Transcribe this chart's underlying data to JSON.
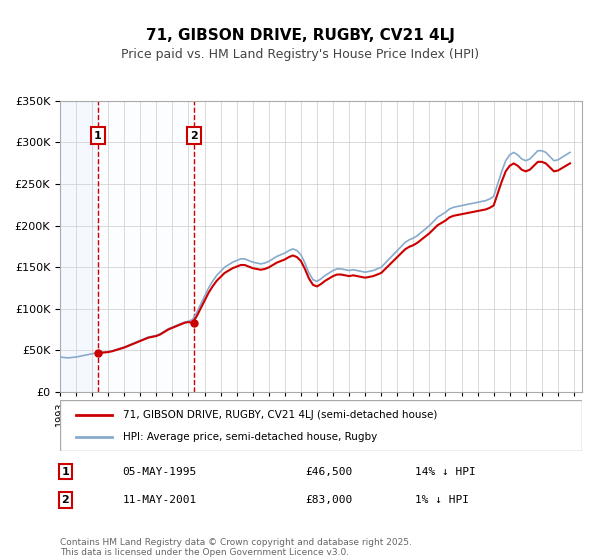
{
  "title": "71, GIBSON DRIVE, RUGBY, CV21 4LJ",
  "subtitle": "Price paid vs. HM Land Registry's House Price Index (HPI)",
  "xlabel": "",
  "ylabel": "",
  "ylim": [
    0,
    350000
  ],
  "yticks": [
    0,
    50000,
    100000,
    150000,
    200000,
    250000,
    300000,
    350000
  ],
  "ytick_labels": [
    "£0",
    "£50K",
    "£100K",
    "£150K",
    "£200K",
    "£250K",
    "£300K",
    "£350K"
  ],
  "sale1_date": 1995.35,
  "sale1_price": 46500,
  "sale1_label": "1",
  "sale2_date": 2001.36,
  "sale2_price": 83000,
  "sale2_label": "2",
  "shade_color": "#ddeeff",
  "dashed_line_color": "#cc0000",
  "legend_line1_color": "#cc0000",
  "legend_line2_color": "#88aacc",
  "legend_label1": "71, GIBSON DRIVE, RUGBY, CV21 4LJ (semi-detached house)",
  "legend_label2": "HPI: Average price, semi-detached house, Rugby",
  "table_row1": [
    "1",
    "05-MAY-1995",
    "£46,500",
    "14% ↓ HPI"
  ],
  "table_row2": [
    "2",
    "11-MAY-2001",
    "£83,000",
    "1% ↓ HPI"
  ],
  "footer": "Contains HM Land Registry data © Crown copyright and database right 2025.\nThis data is licensed under the Open Government Licence v3.0.",
  "bg_color": "#ffffff",
  "grid_color": "#cccccc",
  "title_fontsize": 11,
  "subtitle_fontsize": 9,
  "hpi_data": {
    "years": [
      1993.0,
      1993.25,
      1993.5,
      1993.75,
      1994.0,
      1994.25,
      1994.5,
      1994.75,
      1995.0,
      1995.25,
      1995.5,
      1995.75,
      1996.0,
      1996.25,
      1996.5,
      1996.75,
      1997.0,
      1997.25,
      1997.5,
      1997.75,
      1998.0,
      1998.25,
      1998.5,
      1998.75,
      1999.0,
      1999.25,
      1999.5,
      1999.75,
      2000.0,
      2000.25,
      2000.5,
      2000.75,
      2001.0,
      2001.25,
      2001.5,
      2001.75,
      2002.0,
      2002.25,
      2002.5,
      2002.75,
      2003.0,
      2003.25,
      2003.5,
      2003.75,
      2004.0,
      2004.25,
      2004.5,
      2004.75,
      2005.0,
      2005.25,
      2005.5,
      2005.75,
      2006.0,
      2006.25,
      2006.5,
      2006.75,
      2007.0,
      2007.25,
      2007.5,
      2007.75,
      2008.0,
      2008.25,
      2008.5,
      2008.75,
      2009.0,
      2009.25,
      2009.5,
      2009.75,
      2010.0,
      2010.25,
      2010.5,
      2010.75,
      2011.0,
      2011.25,
      2011.5,
      2011.75,
      2012.0,
      2012.25,
      2012.5,
      2012.75,
      2013.0,
      2013.25,
      2013.5,
      2013.75,
      2014.0,
      2014.25,
      2014.5,
      2014.75,
      2015.0,
      2015.25,
      2015.5,
      2015.75,
      2016.0,
      2016.25,
      2016.5,
      2016.75,
      2017.0,
      2017.25,
      2017.5,
      2017.75,
      2018.0,
      2018.25,
      2018.5,
      2018.75,
      2019.0,
      2019.25,
      2019.5,
      2019.75,
      2020.0,
      2020.25,
      2020.5,
      2020.75,
      2021.0,
      2021.25,
      2021.5,
      2021.75,
      2022.0,
      2022.25,
      2022.5,
      2022.75,
      2023.0,
      2023.25,
      2023.5,
      2023.75,
      2024.0,
      2024.25,
      2024.5,
      2024.75
    ],
    "hpi_values": [
      42000,
      41500,
      41000,
      41500,
      42000,
      43000,
      44000,
      45000,
      46000,
      47000,
      47500,
      48000,
      48500,
      49500,
      51000,
      52500,
      54000,
      56000,
      58000,
      60000,
      62000,
      64000,
      66000,
      67000,
      68000,
      70000,
      73000,
      76000,
      78000,
      80000,
      82000,
      84000,
      85000,
      87000,
      95000,
      105000,
      115000,
      125000,
      133000,
      140000,
      145000,
      150000,
      153000,
      156000,
      158000,
      160000,
      160000,
      158000,
      156000,
      155000,
      154000,
      155000,
      157000,
      160000,
      163000,
      165000,
      167000,
      170000,
      172000,
      170000,
      165000,
      155000,
      143000,
      135000,
      133000,
      136000,
      140000,
      143000,
      146000,
      148000,
      148000,
      147000,
      146000,
      147000,
      146000,
      145000,
      144000,
      145000,
      146000,
      148000,
      150000,
      155000,
      160000,
      165000,
      170000,
      175000,
      180000,
      183000,
      185000,
      188000,
      192000,
      196000,
      200000,
      205000,
      210000,
      213000,
      216000,
      220000,
      222000,
      223000,
      224000,
      225000,
      226000,
      227000,
      228000,
      229000,
      230000,
      232000,
      235000,
      250000,
      265000,
      278000,
      285000,
      288000,
      285000,
      280000,
      278000,
      280000,
      285000,
      290000,
      290000,
      288000,
      283000,
      278000,
      279000,
      282000,
      285000,
      288000
    ],
    "price_values": [
      null,
      null,
      null,
      null,
      null,
      null,
      null,
      null,
      null,
      46500,
      null,
      null,
      null,
      null,
      null,
      null,
      null,
      null,
      null,
      null,
      null,
      null,
      null,
      null,
      null,
      null,
      null,
      null,
      null,
      null,
      null,
      null,
      null,
      null,
      83000,
      null,
      null,
      null,
      null,
      null,
      null,
      null,
      null,
      null,
      null,
      null,
      null,
      null,
      null,
      null,
      null,
      null,
      null,
      null,
      null,
      null,
      null,
      null,
      null,
      null,
      null,
      null,
      null,
      null,
      null,
      null,
      null,
      null,
      null,
      null,
      null,
      null,
      null,
      null,
      null,
      null,
      null,
      null,
      null,
      null,
      null,
      null,
      null,
      null,
      null,
      null,
      null,
      null,
      null,
      null,
      null,
      null,
      null,
      null,
      null,
      null,
      null,
      null,
      null,
      null,
      null,
      null,
      null,
      null,
      null,
      null,
      null,
      null,
      null,
      null,
      null,
      null,
      null,
      null,
      null,
      null,
      null,
      null,
      null,
      null,
      null,
      null,
      null,
      null,
      null,
      null,
      null,
      null
    ]
  }
}
